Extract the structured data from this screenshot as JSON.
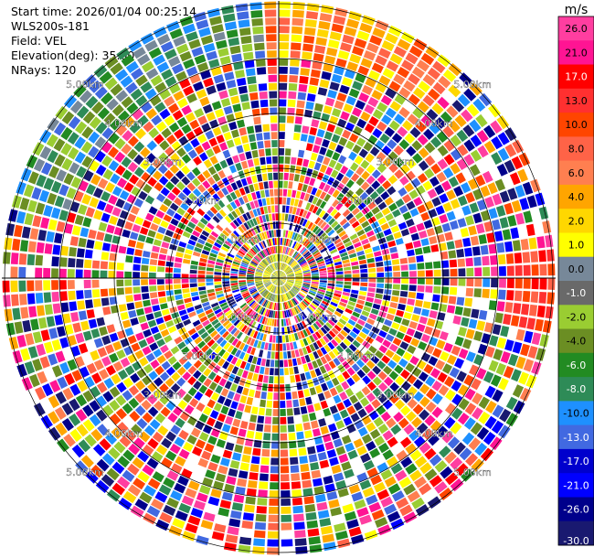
{
  "header": {
    "start_time": "Start time: 2026/01/04 00:25:14",
    "instrument": "WLS200s-181",
    "field": "Field: VEL",
    "elevation": "Elevation(deg): 35.00",
    "nrays": "NRays: 120"
  },
  "chart_data": {
    "type": "ppi-polar",
    "field": "VEL",
    "n_rays": 120,
    "range_labels": [
      "1.00km",
      "2.00km",
      "3.00km",
      "4.00km",
      "5.00km"
    ],
    "colorbar": {
      "unit": "m/s",
      "ticks": [
        "26.0",
        "21.0",
        "17.0",
        "13.0",
        "10.0",
        "8.0",
        "6.0",
        "4.0",
        "2.0",
        "1.0",
        "0.0",
        "-1.0",
        "-2.0",
        "-4.0",
        "-6.0",
        "-8.0",
        "-10.0",
        "-13.0",
        "-17.0",
        "-21.0",
        "-26.0",
        "-30.0"
      ],
      "colors": [
        "#ff3ea0",
        "#ff1493",
        "#ff0000",
        "#ff3030",
        "#ff4500",
        "#ff6347",
        "#ff7f50",
        "#ffa500",
        "#ffd700",
        "#ffff00",
        "#778899",
        "#696969",
        "#9acd32",
        "#6b8e23",
        "#228b22",
        "#2e8b57",
        "#1e90ff",
        "#4169e1",
        "#0000cd",
        "#0000ff",
        "#00008b",
        "#191970"
      ]
    }
  }
}
